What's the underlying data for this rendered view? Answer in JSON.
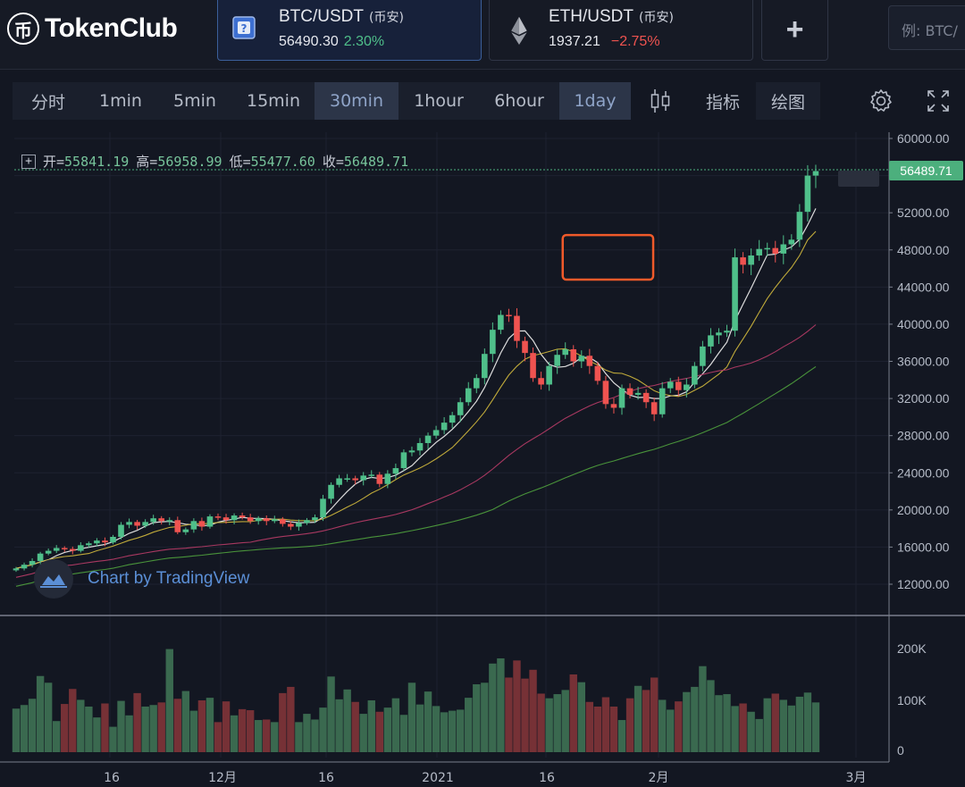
{
  "app": {
    "logo_text": "TokenClub",
    "logo_glyph": "币"
  },
  "pairs": [
    {
      "name": "BTC/USDT",
      "exchange": "(币安)",
      "price": "56490.30",
      "change": "2.30%",
      "direction": "up",
      "icon": "bitcoin-icon"
    },
    {
      "name": "ETH/USDT",
      "exchange": "(币安)",
      "price": "1937.21",
      "change": "−2.75%",
      "direction": "down",
      "icon": "ethereum-icon"
    }
  ],
  "add_label": "+",
  "search": {
    "placeholder": "例: BTC/"
  },
  "toolbar": {
    "timeframes": [
      {
        "label": "分时",
        "selected": false
      },
      {
        "label": "1min",
        "selected": false
      },
      {
        "label": "5min",
        "selected": false
      },
      {
        "label": "15min",
        "selected": false
      },
      {
        "label": "30min",
        "selected": true
      },
      {
        "label": "1hour",
        "selected": false
      },
      {
        "label": "6hour",
        "selected": false
      },
      {
        "label": "1day",
        "selected": true
      }
    ],
    "indicators_label": "指标",
    "drawing_label": "绘图",
    "icons": [
      "candlestick-icon",
      "gear-icon",
      "fullscreen-icon"
    ]
  },
  "ohlc": {
    "open_label": "开=",
    "open": "55841.19",
    "high_label": "高=",
    "high": "56958.99",
    "low_label": "低=",
    "low": "55477.60",
    "close_label": "收=",
    "close": "56489.71",
    "collapse_glyph": "+"
  },
  "last_price": "56489.71",
  "watermark": "Chart by TradingView",
  "colors": {
    "up": "#4fbf8a",
    "down": "#ef5350",
    "accent": "#3b5f9a",
    "highlight_box": "#f05a2a"
  },
  "chart_data": {
    "type": "candlestick",
    "price_axis": {
      "min": 12000,
      "max": 60000,
      "ticks": [
        "60000.00",
        "56000.00",
        "52000.00",
        "48000.00",
        "44000.00",
        "40000.00",
        "36000.00",
        "32000.00",
        "28000.00",
        "24000.00",
        "20000.00",
        "16000.00",
        "12000.00"
      ]
    },
    "volume_axis": {
      "min": 0,
      "max": 250000,
      "ticks": [
        "200K",
        "100K",
        "0"
      ]
    },
    "time_ticks": [
      "16",
      "12月",
      "16",
      "2021",
      "16",
      "2月",
      "3月"
    ],
    "moving_averages": [
      {
        "color": "#e8e8e8"
      },
      {
        "color": "#c9b23c"
      },
      {
        "color": "#b03a64"
      },
      {
        "color": "#4c9a3c"
      }
    ],
    "highlight_region": {
      "from_index": 69,
      "to_index": 76,
      "low": 44800,
      "high": 49600
    },
    "closes": [
      13700,
      14100,
      14500,
      15300,
      15600,
      15900,
      15800,
      15600,
      16200,
      16400,
      16700,
      16500,
      17100,
      18400,
      18700,
      18300,
      18700,
      19100,
      18800,
      18900,
      17600,
      17900,
      18800,
      18200,
      19300,
      19200,
      18900,
      19400,
      19200,
      18800,
      19100,
      18800,
      19000,
      18500,
      18200,
      18600,
      18900,
      19200,
      21200,
      22700,
      23400,
      23400,
      23200,
      23700,
      23800,
      22800,
      23900,
      24500,
      26200,
      26400,
      27200,
      28000,
      28600,
      29400,
      30200,
      31600,
      33100,
      34200,
      36800,
      39400,
      41000,
      40900,
      38200,
      36900,
      34200,
      33500,
      35500,
      36700,
      37300,
      36000,
      36600,
      35500,
      33900,
      31400,
      31000,
      33100,
      32400,
      32600,
      31600,
      30300,
      33100,
      33800,
      32900,
      33500,
      35500,
      37600,
      38800,
      39100,
      39300,
      47200,
      46400,
      47400,
      48100,
      48200,
      47600,
      48600,
      49100,
      52100,
      56000,
      56490
    ],
    "volumes": [
      84,
      91,
      103,
      147,
      134,
      60,
      93,
      122,
      101,
      88,
      67,
      94,
      49,
      99,
      71,
      114,
      88,
      91,
      96,
      199,
      103,
      118,
      80,
      100,
      105,
      58,
      98,
      71,
      83,
      81,
      62,
      63,
      58,
      114,
      126,
      58,
      74,
      63,
      86,
      146,
      102,
      121,
      97,
      74,
      100,
      78,
      86,
      104,
      72,
      134,
      92,
      117,
      89,
      77,
      80,
      82,
      105,
      131,
      134,
      171,
      181,
      144,
      177,
      142,
      159,
      113,
      104,
      112,
      120,
      150,
      135,
      97,
      88,
      106,
      88,
      62,
      104,
      128,
      120,
      144,
      101,
      82,
      98,
      116,
      126,
      166,
      139,
      110,
      112,
      89,
      94,
      78,
      64,
      104,
      113,
      101,
      90,
      107,
      115,
      96
    ]
  }
}
